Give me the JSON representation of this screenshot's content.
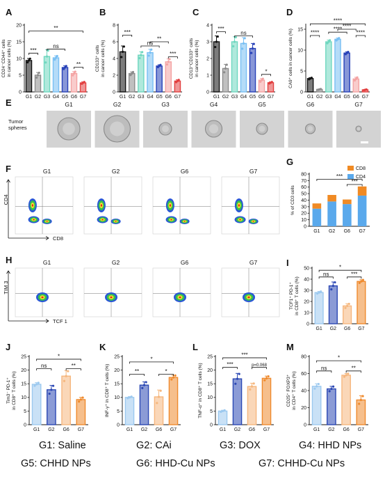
{
  "colors": {
    "G1": "#111111",
    "G2": "#8c8c8c",
    "G3": "#6fd7bf",
    "G4": "#78bff3",
    "G5": "#2741b8",
    "G6": "#f4a3a3",
    "G7": "#e23f3f",
    "cd4": "#5aa9ec",
    "cd8": "#f08a24",
    "i_G1": "#9cc9ef",
    "i_G2": "#2c48b4",
    "i_G6": "#f5b77e",
    "i_G7": "#ef8a2d"
  },
  "panel_letters": [
    "A",
    "B",
    "C",
    "D",
    "E",
    "F",
    "G",
    "H",
    "I",
    "J",
    "K",
    "L",
    "M"
  ],
  "legend": {
    "g1": "G1: Saline",
    "g2": "G2: CAi",
    "g3": "G3: DOX",
    "g4": "G4: HHD NPs",
    "g5": "G5: CHHD NPs",
    "g6": "G6: HHD-Cu NPs",
    "g7": "G7: CHHD-Cu NPs"
  },
  "panelE": {
    "row_label": [
      "Tumor",
      "spheres"
    ],
    "headers": [
      "G1",
      "G2",
      "G3",
      "G4",
      "G5",
      "G6",
      "G7"
    ]
  },
  "panelF": {
    "headers": [
      "G1",
      "G2",
      "G6",
      "G7"
    ],
    "ylabel": "CD4",
    "xlabel": "CD8"
  },
  "panelH": {
    "headers": [
      "G1",
      "G2",
      "G6",
      "G7"
    ],
    "ylabel": "TIM 3",
    "xlabel": "TCF 1"
  },
  "chart_data": [
    {
      "panel": "A",
      "type": "bar",
      "ylabel_lines": [
        "CD24⁻CD44⁺ cells",
        "in cancer cells (%)"
      ],
      "categories": [
        "G1",
        "G2",
        "G3",
        "G4",
        "G5",
        "G6",
        "G7"
      ],
      "values": [
        9.4,
        5.0,
        10.6,
        10.2,
        7.3,
        5.5,
        2.7
      ],
      "errors": [
        0.6,
        0.8,
        2.0,
        0.6,
        0.5,
        0.6,
        0.3
      ],
      "ylim": [
        0,
        20
      ],
      "yticks": [
        0,
        5,
        10,
        15,
        20
      ],
      "annotations": [
        {
          "from": 0,
          "to": 1,
          "text": "***",
          "y": 11.6
        },
        {
          "from": 2,
          "to": 4,
          "text": "ns",
          "y": 12.8
        },
        {
          "from": 0,
          "to": 6,
          "text": "**",
          "y": 18.2
        },
        {
          "from": 5,
          "to": 6,
          "text": "**",
          "y": 7.4
        }
      ]
    },
    {
      "panel": "B",
      "type": "bar",
      "ylabel_lines": [
        "CD133⁺ cells",
        "in cancer cells (%)"
      ],
      "categories": [
        "G1",
        "G2",
        "G3",
        "G4",
        "G5",
        "G6",
        "G7"
      ],
      "values": [
        4.8,
        2.2,
        4.4,
        4.7,
        3.1,
        3.6,
        1.3
      ],
      "errors": [
        0.7,
        0.2,
        0.4,
        0.4,
        0.15,
        0.35,
        0.15
      ],
      "ylim": [
        0,
        8
      ],
      "yticks": [
        0,
        2,
        4,
        6,
        8
      ],
      "annotations": [
        {
          "from": 0,
          "to": 1,
          "text": "***",
          "y": 6.8
        },
        {
          "from": 2,
          "to": 4,
          "text": "ns",
          "y": 5.5
        },
        {
          "from": 3,
          "to": 5,
          "text": "**",
          "y": 6.0
        },
        {
          "from": 5,
          "to": 6,
          "text": "***",
          "y": 4.2
        }
      ]
    },
    {
      "panel": "C",
      "type": "bar",
      "ylabel_lines": [
        "CD13⁺CD133⁺ cells",
        "in cancer cells (%)"
      ],
      "categories": [
        "G1",
        "G2",
        "G3",
        "G4",
        "G5",
        "G6",
        "G7"
      ],
      "values": [
        3.0,
        1.4,
        3.0,
        2.9,
        2.6,
        0.7,
        0.55
      ],
      "errors": [
        0.35,
        0.25,
        0.3,
        0.35,
        0.3,
        0.1,
        0.05
      ],
      "ylim": [
        0,
        4
      ],
      "yticks": [
        0,
        1,
        2,
        3,
        4
      ],
      "annotations": [
        {
          "from": 0,
          "to": 1,
          "text": "***",
          "y": 3.6
        },
        {
          "from": 2,
          "to": 4,
          "text": "ns",
          "y": 3.35
        },
        {
          "from": 5,
          "to": 6,
          "text": "*",
          "y": 1.05
        }
      ]
    },
    {
      "panel": "D",
      "type": "bar",
      "ylabel_lines": [
        "CA9⁺ cells in cancer cells (%)"
      ],
      "categories": [
        "G1",
        "G2",
        "G3",
        "G4",
        "G5",
        "G6",
        "G7"
      ],
      "values": [
        3.2,
        0.6,
        12.0,
        12.6,
        9.3,
        3.1,
        0.5
      ],
      "errors": [
        0.2,
        0.1,
        0.4,
        0.3,
        0.3,
        0.4,
        0.1
      ],
      "ylim": [
        0,
        16
      ],
      "yticks": [
        0,
        5,
        10,
        15
      ],
      "annotations": [
        {
          "from": 0,
          "to": 1,
          "text": "****",
          "y": 13.5
        },
        {
          "from": 2,
          "to": 4,
          "text": "****",
          "y": 14.3
        },
        {
          "from": 3,
          "to": 5,
          "text": "****",
          "y": 15.0
        },
        {
          "from": 5,
          "to": 6,
          "text": "****",
          "y": 13.5
        },
        {
          "from": 0,
          "to": 6,
          "text": "****",
          "y": 16.3
        }
      ]
    },
    {
      "panel": "G",
      "type": "bar",
      "stacked": true,
      "ylabel_lines": [
        "% of CD3 cells"
      ],
      "categories": [
        "G1",
        "G2",
        "G6",
        "G7"
      ],
      "series": [
        {
          "name": "CD4",
          "values": [
            27,
            38,
            34,
            47
          ]
        },
        {
          "name": "CD8",
          "values": [
            8,
            10,
            7,
            14
          ]
        }
      ],
      "ylim": [
        0,
        80
      ],
      "yticks": [
        0,
        10,
        20,
        30,
        40,
        50,
        60,
        70,
        80
      ],
      "annotations": [
        {
          "from": 0,
          "to": 3,
          "text": "***",
          "y": 72
        },
        {
          "from": 2,
          "to": 3,
          "text": "***",
          "y": 64
        }
      ]
    },
    {
      "panel": "I",
      "type": "bar",
      "ylabel_lines": [
        "TCF1⁺ PD-1⁺",
        "in CD8⁺ T cells (%)"
      ],
      "categories": [
        "G1",
        "G2",
        "G6",
        "G7"
      ],
      "values": [
        28,
        34,
        16,
        38
      ],
      "errors": [
        1,
        3.5,
        2,
        1.5
      ],
      "ylim": [
        0,
        50
      ],
      "yticks": [
        0,
        10,
        20,
        30,
        40,
        50
      ],
      "annotations": [
        {
          "from": 0,
          "to": 1,
          "text": "ns",
          "y": 42
        },
        {
          "from": 2,
          "to": 3,
          "text": "***",
          "y": 42
        },
        {
          "from": 0,
          "to": 3,
          "text": "*",
          "y": 48
        }
      ]
    },
    {
      "panel": "J",
      "type": "bar",
      "ylabel_lines": [
        "Tim3⁻ PD-1⁺",
        "in CD8⁺ T cells (%)"
      ],
      "categories": [
        "G1",
        "G2",
        "G6",
        "G7"
      ],
      "values": [
        14.8,
        12.8,
        17.8,
        9.2
      ],
      "errors": [
        0.6,
        1.6,
        2.0,
        0.8
      ],
      "ylim": [
        0,
        25
      ],
      "yticks": [
        0,
        5,
        10,
        15,
        20,
        25
      ],
      "annotations": [
        {
          "from": 0,
          "to": 1,
          "text": "ns",
          "y": 20.5
        },
        {
          "from": 2,
          "to": 3,
          "text": "**",
          "y": 20.5
        },
        {
          "from": 0,
          "to": 3,
          "text": "*",
          "y": 24
        }
      ]
    },
    {
      "panel": "K",
      "type": "bar",
      "ylabel_lines": [
        "INF-γ⁺ in CD8⁺ T cells (%)"
      ],
      "categories": [
        "G1",
        "G2",
        "G6",
        "G7"
      ],
      "values": [
        10.0,
        14.5,
        10.2,
        17.3
      ],
      "errors": [
        0.3,
        1.2,
        2.5,
        0.8
      ],
      "ylim": [
        0,
        25
      ],
      "yticks": [
        0,
        5,
        10,
        15,
        20,
        25
      ],
      "annotations": [
        {
          "from": 0,
          "to": 1,
          "text": "**",
          "y": 18.5
        },
        {
          "from": 2,
          "to": 3,
          "text": "*",
          "y": 18.5
        },
        {
          "from": 0,
          "to": 3,
          "text": "*",
          "y": 23
        }
      ]
    },
    {
      "panel": "L",
      "type": "bar",
      "ylabel_lines": [
        "TNF-α⁺ in CD8⁺ T cells (%)"
      ],
      "categories": [
        "G1",
        "G2",
        "G6",
        "G7"
      ],
      "values": [
        5.0,
        16.8,
        14.0,
        17.0
      ],
      "errors": [
        0.3,
        2.0,
        1.2,
        0.8
      ],
      "ylim": [
        0,
        25
      ],
      "yticks": [
        0,
        5,
        10,
        15,
        20,
        25
      ],
      "annotations": [
        {
          "from": 0,
          "to": 1,
          "text": "***",
          "y": 21
        },
        {
          "from": 2,
          "to": 3,
          "text": "p=0.068",
          "y": 21
        },
        {
          "from": 0,
          "to": 3,
          "text": "***",
          "y": 24.5
        }
      ]
    },
    {
      "panel": "M",
      "type": "bar",
      "ylabel_lines": [
        "CD25⁺ FOXP3⁺",
        "in CD4⁺ T cells (%)"
      ],
      "categories": [
        "G1",
        "G2",
        "G6",
        "G7"
      ],
      "values": [
        45,
        42,
        58,
        29
      ],
      "errors": [
        3,
        3,
        2,
        5
      ],
      "ylim": [
        0,
        80
      ],
      "yticks": [
        0,
        20,
        40,
        60,
        80
      ],
      "annotations": [
        {
          "from": 0,
          "to": 1,
          "text": "ns",
          "y": 63
        },
        {
          "from": 2,
          "to": 3,
          "text": "**",
          "y": 63
        },
        {
          "from": 0,
          "to": 3,
          "text": "*",
          "y": 75
        }
      ]
    }
  ]
}
